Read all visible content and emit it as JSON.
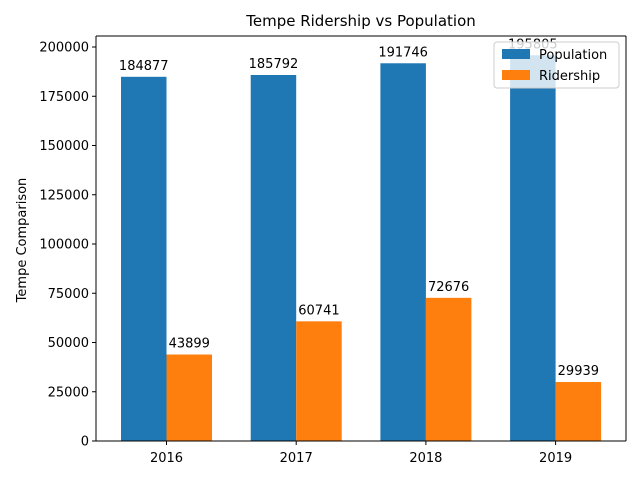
{
  "chart_data": {
    "type": "bar",
    "title": "Tempe Ridership vs Population",
    "xlabel": "",
    "ylabel": "Tempe Comparison",
    "categories": [
      "2016",
      "2017",
      "2018",
      "2019"
    ],
    "series": [
      {
        "name": "Population",
        "color": "#1f77b4",
        "values": [
          184877,
          185792,
          191746,
          195805
        ]
      },
      {
        "name": "Ridership",
        "color": "#ff7f0e",
        "values": [
          43899,
          60741,
          72676,
          29939
        ]
      }
    ],
    "ylim": [
      0,
      205590
    ],
    "yticks": [
      0,
      25000,
      50000,
      75000,
      100000,
      125000,
      150000,
      175000,
      200000
    ],
    "grid": false,
    "legend_position": "top-right"
  }
}
